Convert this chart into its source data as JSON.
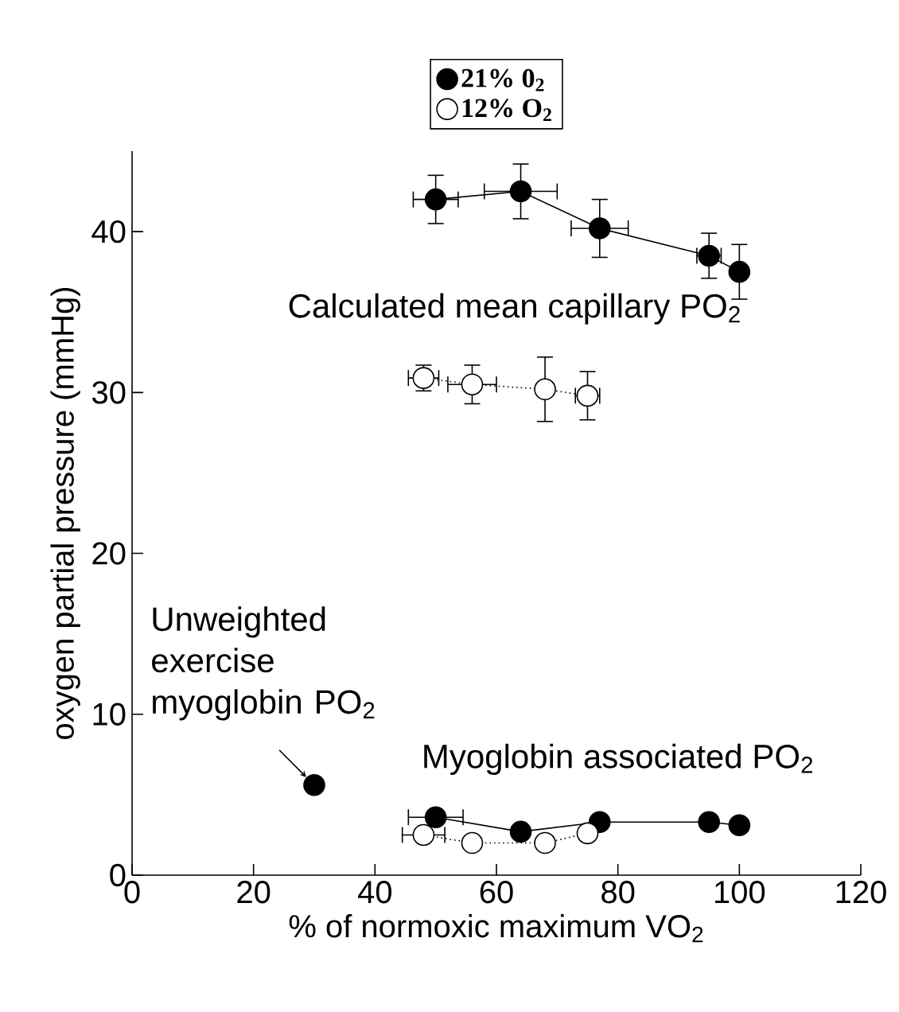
{
  "chart_data": {
    "type": "line",
    "xlabel": "% of normoxic maximum VO$_{2}$",
    "ylabel": "oxygen partial pressure (mmHg)",
    "xlim": [
      0,
      120
    ],
    "xticks": [
      0,
      20,
      40,
      60,
      80,
      100,
      120
    ],
    "ylim": [
      0,
      45
    ],
    "yticks": [
      0,
      10,
      20,
      30,
      40
    ],
    "marker": "circle",
    "legend": "top",
    "grid": false,
    "annotations": [
      "Calculated mean capillary PO$_{2}$",
      {
        "text": "Unweighted exercise myoglobin PO$_{2}$",
        "x": 30,
        "y": 5.6
      },
      "Myoglobin associated PO$_{2}$"
    ],
    "series": [
      {
        "name": "21% 0$_{2}$",
        "color": "#000000",
        "line_style": "solid",
        "x": [
          50,
          64,
          77,
          95,
          100
        ],
        "values": [
          42.0,
          42.5,
          40.2,
          38.5,
          37.5
        ],
        "errors": [
          1.5,
          1.7,
          1.8,
          1.4,
          1.7
        ],
        "xerrors": [
          3.7,
          6,
          4.7,
          2,
          1
        ]
      },
      {
        "name": "12% O$_{2}$",
        "color": "#ffffff",
        "line_style": "dotted",
        "x": [
          48,
          56,
          68,
          75
        ],
        "values": [
          30.9,
          30.5,
          30.2,
          29.8
        ],
        "errors": [
          0.8,
          1.2,
          2.0,
          1.5
        ],
        "xerrors": [
          2.5,
          4,
          1,
          2
        ]
      },
      {
        "color": "#000000",
        "line_style": "solid",
        "x": [
          50,
          64,
          77,
          95,
          100
        ],
        "values": [
          3.6,
          2.7,
          3.3,
          3.3,
          3.1
        ],
        "xerrors": [
          4.5,
          null,
          null,
          null,
          null
        ]
      },
      {
        "color": "#ffffff",
        "line_style": "dotted",
        "x": [
          48,
          56,
          68,
          75
        ],
        "values": [
          2.5,
          2.0,
          2.0,
          2.6
        ],
        "xerrors": [
          3.5,
          null,
          null,
          null
        ]
      },
      {
        "type": "scatter",
        "color": "#000000",
        "x": [
          30
        ],
        "values": [
          5.6
        ]
      }
    ]
  }
}
